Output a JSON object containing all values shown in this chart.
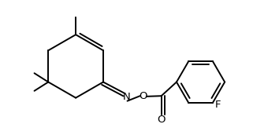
{
  "bg_color": "#ffffff",
  "line_color": "#000000",
  "line_width": 1.4,
  "font_size": 8.5,
  "figsize": [
    3.21,
    1.72
  ],
  "dpi": 100,
  "xlim": [
    -0.5,
    8.5
  ],
  "ylim": [
    -2.5,
    2.8
  ]
}
